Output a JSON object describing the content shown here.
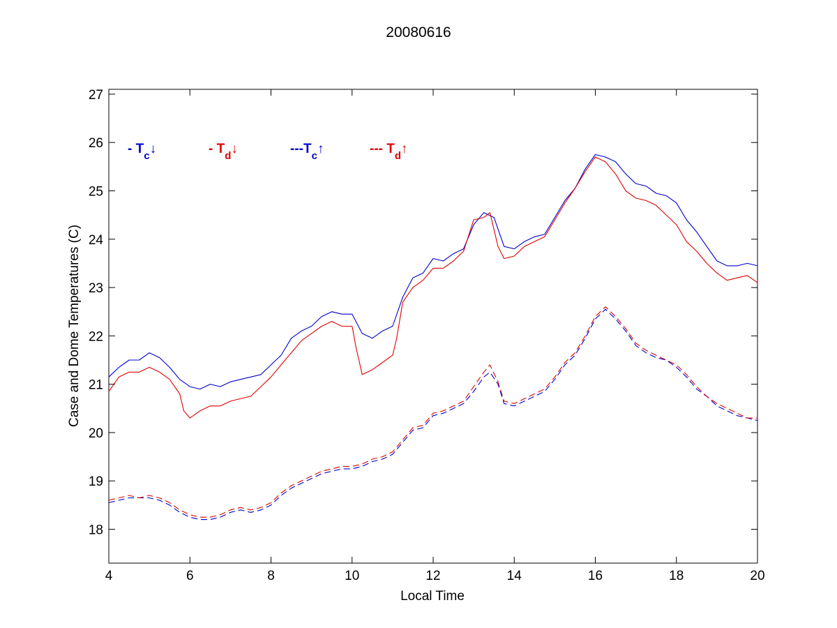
{
  "chart_data": {
    "type": "line",
    "title": "20080616",
    "xlabel": "Local Time",
    "ylabel": "Case and Dome Temperatures (C)",
    "xlim": [
      4,
      20
    ],
    "ylim": [
      17.3,
      27.1
    ],
    "xticks": [
      4,
      6,
      8,
      10,
      12,
      14,
      16,
      18,
      20
    ],
    "yticks": [
      18,
      19,
      20,
      21,
      22,
      23,
      24,
      25,
      26,
      27
    ],
    "grid": false,
    "legend_position": "top-left",
    "series": [
      {
        "key": "tc_down",
        "legend": {
          "prefix": "- T",
          "sub": "c",
          "arrow": "↓"
        },
        "color": "#0000cc",
        "dash": "solid",
        "x": [
          4.0,
          4.25,
          4.5,
          4.75,
          5.0,
          5.25,
          5.5,
          5.75,
          6.0,
          6.25,
          6.5,
          6.75,
          7.0,
          7.25,
          7.5,
          7.75,
          8.0,
          8.25,
          8.5,
          8.75,
          9.0,
          9.25,
          9.5,
          9.75,
          10.0,
          10.25,
          10.5,
          10.75,
          11.0,
          11.25,
          11.5,
          11.75,
          12.0,
          12.25,
          12.5,
          12.75,
          13.0,
          13.25,
          13.5,
          13.75,
          14.0,
          14.25,
          14.5,
          14.75,
          15.0,
          15.25,
          15.5,
          15.75,
          16.0,
          16.25,
          16.5,
          16.75,
          17.0,
          17.25,
          17.5,
          17.75,
          18.0,
          18.25,
          18.5,
          18.75,
          19.0,
          19.25,
          19.5,
          19.75,
          20.0
        ],
        "y": [
          21.15,
          21.35,
          21.5,
          21.5,
          21.65,
          21.55,
          21.35,
          21.1,
          20.95,
          20.9,
          21.0,
          20.95,
          21.05,
          21.1,
          21.15,
          21.2,
          21.4,
          21.6,
          21.95,
          22.1,
          22.2,
          22.4,
          22.5,
          22.45,
          22.45,
          22.05,
          21.95,
          22.1,
          22.2,
          22.8,
          23.2,
          23.3,
          23.6,
          23.55,
          23.7,
          23.8,
          24.3,
          24.55,
          24.45,
          23.85,
          23.8,
          23.95,
          24.05,
          24.1,
          24.45,
          24.8,
          25.05,
          25.45,
          25.75,
          25.7,
          25.6,
          25.35,
          25.15,
          25.1,
          24.95,
          24.9,
          24.75,
          24.4,
          24.15,
          23.85,
          23.55,
          23.45,
          23.45,
          23.5,
          23.45
        ]
      },
      {
        "key": "td_down",
        "legend": {
          "prefix": "- T",
          "sub": "d",
          "arrow": "↓"
        },
        "color": "#dd0000",
        "dash": "solid",
        "x": [
          4.0,
          4.25,
          4.5,
          4.75,
          5.0,
          5.25,
          5.5,
          5.75,
          5.85,
          6.0,
          6.25,
          6.5,
          6.75,
          7.0,
          7.25,
          7.5,
          7.75,
          8.0,
          8.25,
          8.5,
          8.75,
          9.0,
          9.25,
          9.5,
          9.75,
          10.0,
          10.1,
          10.25,
          10.5,
          10.75,
          11.0,
          11.1,
          11.25,
          11.5,
          11.75,
          12.0,
          12.25,
          12.5,
          12.75,
          13.0,
          13.25,
          13.4,
          13.6,
          13.75,
          14.0,
          14.25,
          14.5,
          14.75,
          15.0,
          15.25,
          15.5,
          15.75,
          16.0,
          16.25,
          16.5,
          16.75,
          17.0,
          17.25,
          17.5,
          17.75,
          18.0,
          18.25,
          18.5,
          18.75,
          19.0,
          19.25,
          19.5,
          19.75,
          20.0
        ],
        "y": [
          20.85,
          21.15,
          21.25,
          21.25,
          21.35,
          21.25,
          21.1,
          20.8,
          20.45,
          20.3,
          20.45,
          20.55,
          20.55,
          20.65,
          20.7,
          20.75,
          20.95,
          21.15,
          21.4,
          21.65,
          21.9,
          22.05,
          22.2,
          22.3,
          22.2,
          22.2,
          21.75,
          21.2,
          21.3,
          21.45,
          21.6,
          21.95,
          22.7,
          23.0,
          23.15,
          23.4,
          23.4,
          23.55,
          23.75,
          24.4,
          24.45,
          24.55,
          23.85,
          23.6,
          23.65,
          23.85,
          23.95,
          24.05,
          24.4,
          24.75,
          25.05,
          25.4,
          25.7,
          25.6,
          25.35,
          25.0,
          24.85,
          24.8,
          24.7,
          24.5,
          24.3,
          23.95,
          23.75,
          23.5,
          23.3,
          23.15,
          23.2,
          23.25,
          23.1
        ]
      },
      {
        "key": "tc_up",
        "legend": {
          "prefix": "---T",
          "sub": "c",
          "arrow": "↑"
        },
        "color": "#0000cc",
        "dash": "dashed",
        "x": [
          4.0,
          4.25,
          4.5,
          4.75,
          5.0,
          5.25,
          5.5,
          5.75,
          6.0,
          6.25,
          6.5,
          6.75,
          7.0,
          7.25,
          7.5,
          7.75,
          8.0,
          8.25,
          8.5,
          8.75,
          9.0,
          9.25,
          9.5,
          9.75,
          10.0,
          10.25,
          10.5,
          10.75,
          11.0,
          11.25,
          11.5,
          11.75,
          12.0,
          12.25,
          12.5,
          12.75,
          13.0,
          13.25,
          13.4,
          13.6,
          13.75,
          14.0,
          14.25,
          14.5,
          14.75,
          15.0,
          15.25,
          15.5,
          15.75,
          16.0,
          16.25,
          16.5,
          16.75,
          17.0,
          17.25,
          17.5,
          17.75,
          18.0,
          18.25,
          18.5,
          18.75,
          19.0,
          19.25,
          19.5,
          19.75,
          20.0
        ],
        "y": [
          18.55,
          18.6,
          18.65,
          18.65,
          18.65,
          18.6,
          18.5,
          18.35,
          18.25,
          18.2,
          18.2,
          18.25,
          18.35,
          18.4,
          18.35,
          18.4,
          18.5,
          18.7,
          18.85,
          18.95,
          19.05,
          19.15,
          19.2,
          19.25,
          19.25,
          19.3,
          19.4,
          19.45,
          19.55,
          19.8,
          20.05,
          20.1,
          20.35,
          20.4,
          20.5,
          20.6,
          20.85,
          21.15,
          21.25,
          21.0,
          20.6,
          20.55,
          20.65,
          20.75,
          20.85,
          21.1,
          21.4,
          21.6,
          21.95,
          22.35,
          22.55,
          22.35,
          22.1,
          21.8,
          21.65,
          21.55,
          21.5,
          21.35,
          21.15,
          20.9,
          20.75,
          20.55,
          20.45,
          20.35,
          20.3,
          20.25
        ]
      },
      {
        "key": "td_up",
        "legend": {
          "prefix": "--- T",
          "sub": "d",
          "arrow": "↑"
        },
        "color": "#dd0000",
        "dash": "dashed",
        "x": [
          4.0,
          4.25,
          4.5,
          4.75,
          5.0,
          5.25,
          5.5,
          5.75,
          6.0,
          6.25,
          6.5,
          6.75,
          7.0,
          7.25,
          7.5,
          7.75,
          8.0,
          8.25,
          8.5,
          8.75,
          9.0,
          9.25,
          9.5,
          9.75,
          10.0,
          10.25,
          10.5,
          10.75,
          11.0,
          11.25,
          11.5,
          11.75,
          12.0,
          12.25,
          12.5,
          12.75,
          13.0,
          13.25,
          13.4,
          13.6,
          13.75,
          14.0,
          14.25,
          14.5,
          14.75,
          15.0,
          15.25,
          15.5,
          15.75,
          16.0,
          16.25,
          16.5,
          16.75,
          17.0,
          17.25,
          17.5,
          17.75,
          18.0,
          18.25,
          18.5,
          18.75,
          19.0,
          19.25,
          19.5,
          19.75,
          20.0
        ],
        "y": [
          18.6,
          18.65,
          18.7,
          18.65,
          18.7,
          18.65,
          18.55,
          18.4,
          18.3,
          18.25,
          18.25,
          18.3,
          18.4,
          18.45,
          18.4,
          18.45,
          18.55,
          18.75,
          18.9,
          19.0,
          19.1,
          19.2,
          19.25,
          19.3,
          19.3,
          19.35,
          19.45,
          19.5,
          19.6,
          19.85,
          20.1,
          20.15,
          20.4,
          20.45,
          20.55,
          20.65,
          20.95,
          21.25,
          21.4,
          21.05,
          20.65,
          20.6,
          20.7,
          20.8,
          20.9,
          21.15,
          21.45,
          21.65,
          22.0,
          22.4,
          22.6,
          22.4,
          22.15,
          21.85,
          21.7,
          21.6,
          21.5,
          21.4,
          21.2,
          20.95,
          20.75,
          20.6,
          20.5,
          20.4,
          20.3,
          20.3
        ]
      }
    ]
  }
}
